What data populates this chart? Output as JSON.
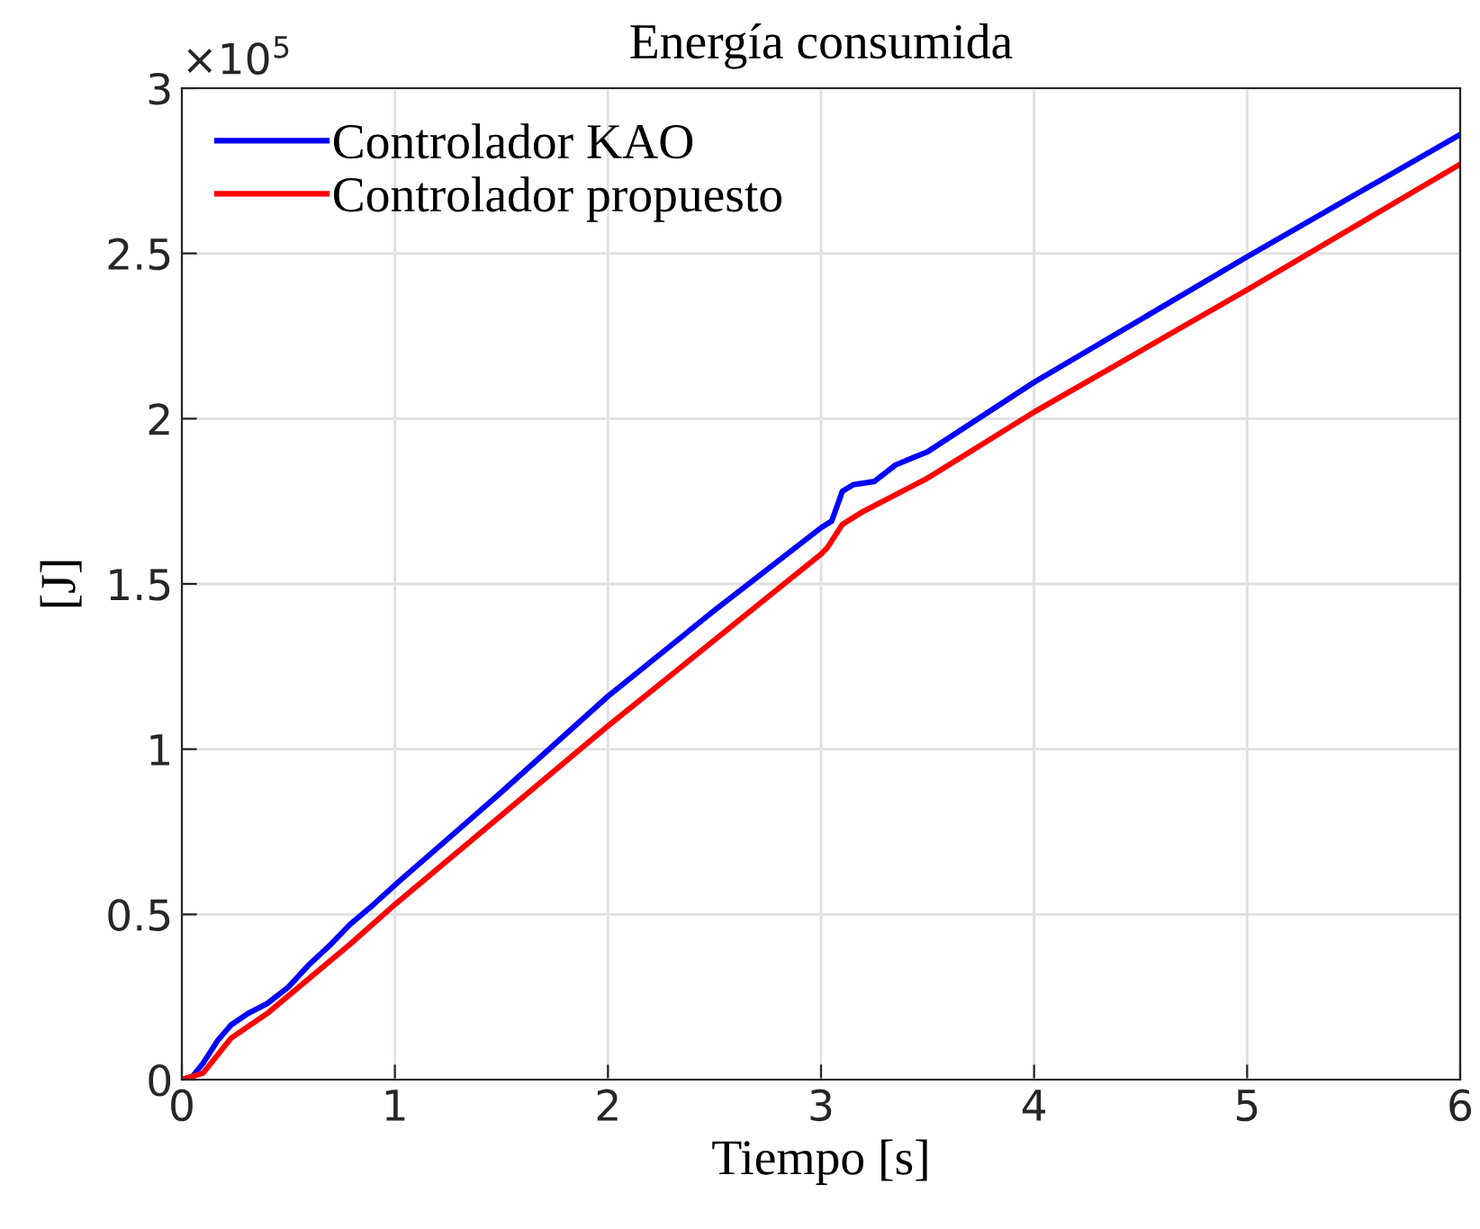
{
  "chart_data": {
    "type": "line",
    "title": "Energía consumida",
    "xlabel": "Tiempo [s]",
    "ylabel": "[J]",
    "annotations": [
      "×10$^{5}$"
    ],
    "xlim": [
      0,
      6
    ],
    "xticks": [
      0,
      1,
      2,
      3,
      4,
      5,
      6
    ],
    "ylim": [
      0,
      3
    ],
    "yticks": [
      0,
      0.5,
      1,
      1.5,
      2,
      2.5,
      3
    ],
    "grid": true,
    "legend": "top left",
    "line_style": "solid",
    "marker": "none",
    "series": [
      {
        "name": "Controlador KAO",
        "color": "#0000ff",
        "x": [
          0,
          0.05,
          0.1,
          0.17,
          0.23,
          0.31,
          0.4,
          0.5,
          0.6,
          0.7,
          0.79,
          0.9,
          1.02,
          1.5,
          2,
          2.5,
          3,
          3.05,
          3.1,
          3.15,
          3.25,
          3.35,
          3.5,
          4,
          5,
          6
        ],
        "values": [
          0,
          0.01,
          0.05,
          0.12,
          0.165,
          0.2,
          0.23,
          0.28,
          0.35,
          0.41,
          0.47,
          0.53,
          0.6,
          0.87,
          1.16,
          1.42,
          1.67,
          1.69,
          1.78,
          1.8,
          1.81,
          1.86,
          1.9,
          2.11,
          2.49,
          2.86
        ]
      },
      {
        "name": "Controlador propuesto",
        "color": "#ff0000",
        "x": [
          0,
          0.1,
          0.23,
          0.4,
          0.79,
          1,
          1.5,
          2,
          2.5,
          3,
          3.03,
          3.1,
          3.2,
          3.5,
          4,
          5,
          6
        ],
        "values": [
          0,
          0.02,
          0.125,
          0.2,
          0.41,
          0.53,
          0.8,
          1.07,
          1.33,
          1.59,
          1.61,
          1.68,
          1.72,
          1.82,
          2.02,
          2.39,
          2.77
        ]
      }
    ]
  }
}
